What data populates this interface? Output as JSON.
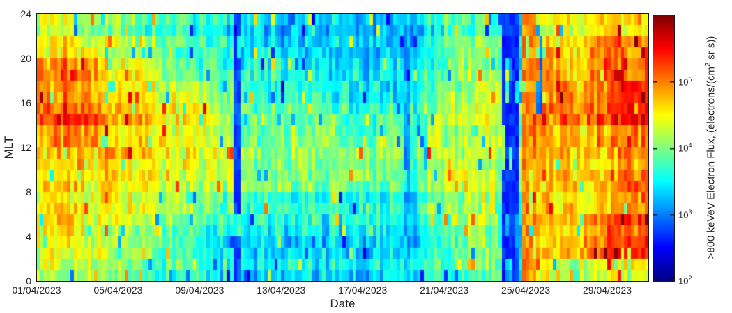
{
  "chart_data": {
    "type": "heatmap",
    "title": "",
    "xlabel": "Date",
    "ylabel": "MLT",
    "x_tick_labels": [
      "01/04/2023",
      "05/04/2023",
      "09/04/2023",
      "13/04/2023",
      "17/04/2023",
      "21/04/2023",
      "25/04/2023",
      "29/04/2023"
    ],
    "x_tick_days": [
      0,
      4,
      8,
      12,
      16,
      20,
      24,
      28
    ],
    "x_range_days": [
      0,
      30
    ],
    "y_tick_labels": [
      "0",
      "4",
      "8",
      "12",
      "16",
      "20",
      "24"
    ],
    "y_tick_values": [
      0,
      4,
      8,
      12,
      16,
      20,
      24
    ],
    "y_range": [
      0,
      24
    ],
    "grid": false,
    "legend": "none",
    "colormap": "jet",
    "color_scale": {
      "type": "log10",
      "min_log10": 2,
      "max_log10": 6
    },
    "colorbar": {
      "label_pre": ">800 keVeV Electron Flux, (electrons/(cm",
      "label_sup": "2",
      "label_post": " sr s))",
      "tick_base": "10",
      "tick_exponents": [
        "5",
        "4",
        "3",
        "2"
      ],
      "tick_values_log10": [
        5,
        4,
        3,
        2
      ]
    },
    "sampling": {
      "columns_per_day": 6,
      "mlt_rows": 24,
      "mlt_band_size": 2
    },
    "base_log10_flux_note": "Estimated mean log10 flux. Rows = 2-MLT bands from MLT 0-2 (bottom) to MLT 22-24 (top); columns = days 01/04/2023 .. 30/04/2023.",
    "base_log10_flux": [
      [
        4.2,
        4.2,
        4.1,
        4.1,
        4.0,
        3.9,
        3.8,
        3.7,
        3.6,
        3.5,
        3.3,
        3.5,
        3.4,
        3.4,
        3.5,
        3.4,
        3.4,
        3.5,
        3.4,
        3.8,
        3.9,
        4.0,
        3.9,
        3.2,
        4.4,
        4.3,
        4.2,
        4.3,
        4.4,
        4.4
      ],
      [
        4.4,
        4.4,
        4.3,
        4.3,
        4.2,
        4.1,
        3.9,
        3.7,
        3.6,
        3.5,
        3.2,
        3.4,
        3.3,
        3.3,
        3.4,
        3.3,
        3.3,
        3.4,
        3.3,
        3.7,
        3.9,
        4.0,
        3.9,
        3.0,
        4.7,
        4.8,
        4.8,
        5.1,
        5.3,
        5.2
      ],
      [
        4.5,
        4.6,
        4.4,
        4.4,
        4.3,
        4.2,
        4.0,
        3.9,
        3.8,
        3.7,
        3.4,
        3.6,
        3.5,
        3.5,
        3.5,
        3.5,
        3.4,
        3.5,
        3.4,
        3.8,
        4.0,
        4.1,
        4.0,
        2.9,
        4.8,
        4.8,
        4.7,
        5.0,
        5.3,
        5.2
      ],
      [
        4.5,
        4.5,
        4.4,
        4.4,
        4.4,
        4.3,
        4.2,
        4.1,
        4.0,
        3.9,
        3.6,
        3.8,
        3.7,
        3.7,
        3.7,
        3.6,
        3.6,
        3.6,
        3.5,
        3.9,
        4.1,
        4.2,
        4.1,
        3.0,
        4.7,
        4.6,
        4.5,
        4.6,
        4.8,
        4.8
      ],
      [
        4.6,
        4.7,
        4.6,
        4.6,
        4.5,
        4.5,
        4.4,
        4.3,
        4.3,
        4.2,
        3.9,
        4.1,
        4.1,
        4.0,
        4.0,
        4.0,
        3.9,
        3.9,
        3.8,
        4.1,
        4.3,
        4.4,
        4.2,
        3.6,
        4.9,
        4.8,
        4.6,
        4.8,
        5.0,
        5.1
      ],
      [
        4.8,
        4.8,
        4.7,
        4.7,
        4.6,
        4.6,
        4.5,
        4.4,
        4.4,
        4.3,
        4.0,
        4.2,
        4.1,
        4.1,
        4.1,
        4.0,
        4.0,
        4.0,
        3.9,
        4.2,
        4.3,
        4.4,
        4.3,
        3.7,
        4.9,
        4.7,
        4.6,
        4.7,
        4.9,
        4.9
      ],
      [
        4.9,
        5.0,
        4.8,
        4.8,
        4.7,
        4.6,
        4.5,
        4.4,
        4.3,
        4.2,
        3.9,
        4.0,
        4.0,
        4.0,
        3.9,
        3.9,
        3.9,
        3.9,
        3.8,
        4.1,
        4.2,
        4.3,
        4.2,
        3.6,
        5.0,
        4.8,
        4.7,
        4.8,
        5.0,
        5.0
      ],
      [
        5.2,
        5.3,
        5.1,
        4.9,
        4.8,
        4.7,
        4.5,
        4.4,
        4.3,
        4.1,
        3.8,
        3.9,
        3.8,
        3.8,
        3.8,
        3.7,
        3.7,
        3.8,
        3.7,
        4.0,
        4.2,
        4.3,
        4.2,
        3.5,
        5.1,
        5.0,
        4.9,
        5.1,
        5.4,
        5.4
      ],
      [
        5.0,
        5.1,
        4.9,
        4.8,
        4.6,
        4.5,
        4.3,
        4.2,
        4.1,
        3.9,
        3.7,
        3.7,
        3.6,
        3.7,
        3.6,
        3.5,
        3.5,
        3.6,
        3.5,
        3.9,
        4.2,
        4.2,
        4.2,
        3.3,
        5.0,
        4.9,
        4.8,
        5.1,
        5.3,
        5.3
      ],
      [
        4.8,
        4.9,
        4.7,
        4.6,
        4.4,
        4.3,
        4.1,
        3.9,
        3.8,
        3.6,
        3.5,
        3.5,
        3.4,
        3.4,
        3.3,
        3.3,
        3.3,
        3.4,
        3.3,
        3.7,
        4.0,
        4.1,
        4.1,
        3.1,
        4.8,
        4.7,
        4.6,
        4.9,
        5.1,
        5.0
      ],
      [
        4.4,
        4.5,
        4.3,
        4.2,
        4.1,
        4.0,
        3.8,
        3.7,
        3.7,
        3.4,
        3.3,
        3.3,
        3.2,
        3.3,
        3.2,
        3.1,
        3.1,
        3.2,
        3.2,
        3.6,
        3.9,
        4.0,
        4.0,
        3.0,
        4.6,
        4.6,
        4.5,
        4.8,
        5.0,
        4.9
      ],
      [
        4.3,
        4.3,
        4.2,
        4.1,
        4.0,
        3.9,
        3.7,
        3.6,
        3.7,
        3.4,
        3.4,
        3.4,
        3.3,
        3.4,
        3.3,
        3.2,
        3.2,
        3.3,
        3.3,
        3.6,
        3.8,
        3.9,
        3.9,
        3.2,
        4.4,
        4.5,
        4.4,
        4.6,
        4.7,
        4.6
      ]
    ],
    "dropout_events": [
      {
        "day_start": 9.6,
        "day_end": 10.05,
        "mlt_min": 0,
        "mlt_max": 24,
        "log10": 2.6,
        "coverage": 0.85
      },
      {
        "day_start": 15.95,
        "day_end": 16.2,
        "mlt_min": 15,
        "mlt_max": 24,
        "log10": 3.0,
        "coverage": 0.45
      },
      {
        "day_start": 17.95,
        "day_end": 18.3,
        "mlt_min": 2,
        "mlt_max": 22,
        "log10": 2.9,
        "coverage": 0.6
      },
      {
        "day_start": 22.85,
        "day_end": 23.65,
        "mlt_min": 0,
        "mlt_max": 24,
        "log10": 2.5,
        "coverage": 0.75
      },
      {
        "day_start": 24.55,
        "day_end": 24.9,
        "mlt_min": 15,
        "mlt_max": 23,
        "log10": 2.8,
        "coverage": 0.55
      },
      {
        "day_start": 25.35,
        "day_end": 25.85,
        "mlt_min": 18,
        "mlt_max": 23,
        "log10": 3.0,
        "coverage": 0.45
      }
    ],
    "burst_events": [
      {
        "day_start": 23.9,
        "day_end": 24.45,
        "mlt_min": 0,
        "mlt_max": 24,
        "log10": 5.2,
        "coverage": 0.8
      },
      {
        "day_start": 24.55,
        "day_end": 26.3,
        "mlt_min": 12,
        "mlt_max": 18,
        "log10": 5.1,
        "coverage": 0.35
      },
      {
        "day_start": 26.8,
        "day_end": 30.0,
        "mlt_min": 18,
        "mlt_max": 22,
        "log10": 5.1,
        "coverage": 0.3
      },
      {
        "day_start": 27.2,
        "day_end": 30.0,
        "mlt_min": 2,
        "mlt_max": 6,
        "log10": 5.3,
        "coverage": 0.45
      },
      {
        "day_start": 28.3,
        "day_end": 30.0,
        "mlt_min": 14,
        "mlt_max": 18,
        "log10": 5.4,
        "coverage": 0.5
      }
    ],
    "texture": {
      "row_offset_amp": 0.26,
      "column_streak_amp": 0.6,
      "cell_noise_amp": 0.42,
      "spike_prob": 0.03,
      "spike_amp": 0.85
    }
  },
  "colors": {
    "axis": "#1a1a1a",
    "text": "#262626",
    "background": "#ffffff"
  }
}
